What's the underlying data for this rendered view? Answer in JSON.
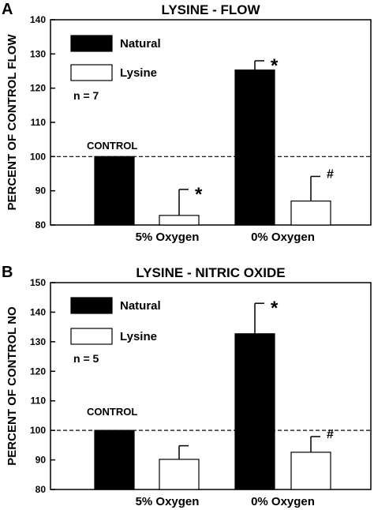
{
  "chart_data": [
    {
      "type": "bar",
      "panel_label": "A",
      "title": "LYSINE - FLOW",
      "ylabel": "PERCENT OF CONTROL FLOW",
      "ylim": [
        80,
        140
      ],
      "yticks": [
        80,
        90,
        100,
        110,
        120,
        130,
        140
      ],
      "reference_line": {
        "value": 100,
        "style": "dashed"
      },
      "control_label": "CONTROL",
      "control_bar": {
        "value": 100,
        "color": "#000000"
      },
      "categories": [
        "5% Oxygen",
        "0% Oxygen"
      ],
      "series": [
        {
          "name": "Natural",
          "color": "#000000",
          "values": [
            null,
            125.3
          ],
          "errors": [
            null,
            2.7
          ],
          "marks": [
            null,
            "*"
          ]
        },
        {
          "name": "Lysine",
          "color": "#ffffff",
          "values": [
            82.8,
            87.0
          ],
          "errors": [
            7.6,
            7.2
          ],
          "marks": [
            "*",
            "#"
          ]
        }
      ],
      "n_label": "n = 7",
      "legend_position": "top-left",
      "grid": false
    },
    {
      "type": "bar",
      "panel_label": "B",
      "title": "LYSINE - NITRIC OXIDE",
      "ylabel": "PERCENT OF CONTROL NO",
      "ylim": [
        80,
        150
      ],
      "yticks": [
        80,
        90,
        100,
        110,
        120,
        130,
        140,
        150
      ],
      "reference_line": {
        "value": 100,
        "style": "dashed"
      },
      "control_label": "CONTROL",
      "control_bar": {
        "value": 100,
        "color": "#000000"
      },
      "categories": [
        "5% Oxygen",
        "0% Oxygen"
      ],
      "series": [
        {
          "name": "Natural",
          "color": "#000000",
          "values": [
            null,
            132.7
          ],
          "errors": [
            null,
            10.3
          ],
          "marks": [
            null,
            "*"
          ]
        },
        {
          "name": "Lysine",
          "color": "#ffffff",
          "values": [
            90.2,
            92.6
          ],
          "errors": [
            4.6,
            5.3
          ],
          "marks": [
            null,
            "#"
          ]
        }
      ],
      "n_label": "n = 5",
      "legend_position": "top-left",
      "grid": false
    }
  ]
}
